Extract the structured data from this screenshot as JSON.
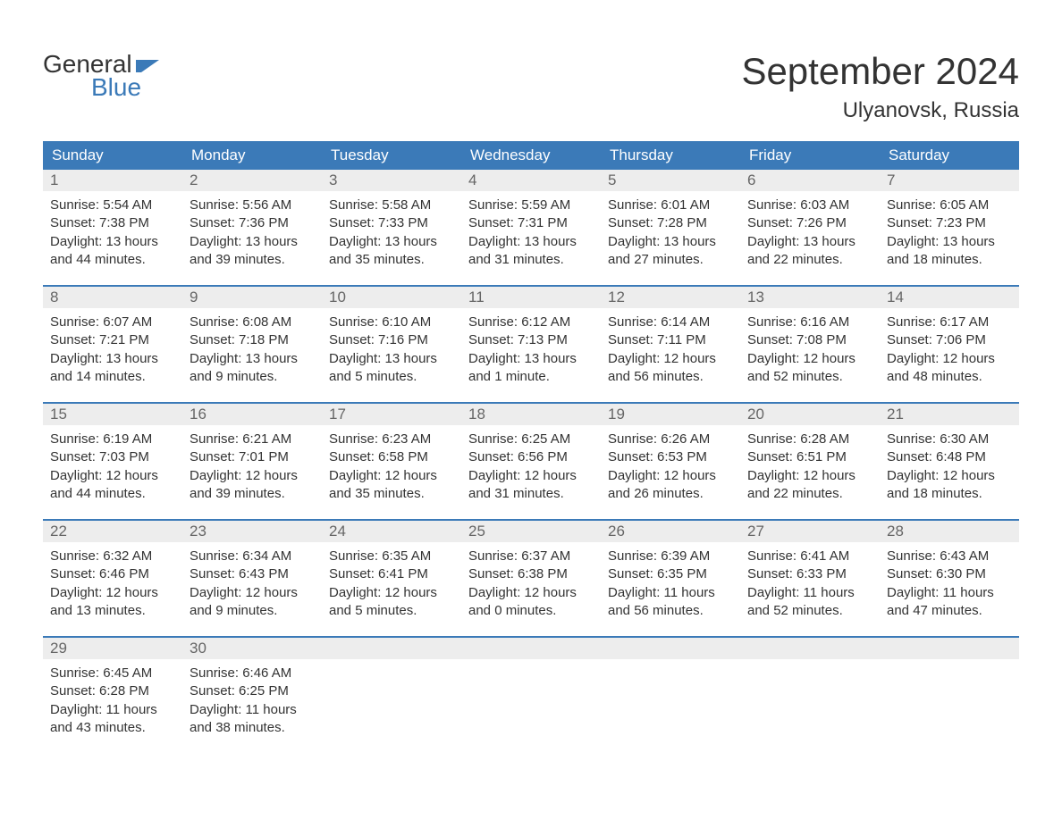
{
  "logo": {
    "text1": "General",
    "text2": "Blue"
  },
  "title": "September 2024",
  "location": "Ulyanovsk, Russia",
  "colors": {
    "header_bg": "#3b7ab8",
    "header_text": "#ffffff",
    "daynum_bg": "#ededed",
    "daynum_text": "#666666",
    "body_text": "#333333",
    "week_border": "#3b7ab8",
    "page_bg": "#ffffff",
    "logo_accent": "#3b7ab8"
  },
  "weekdays": [
    "Sunday",
    "Monday",
    "Tuesday",
    "Wednesday",
    "Thursday",
    "Friday",
    "Saturday"
  ],
  "weeks": [
    [
      {
        "n": "1",
        "sunrise": "Sunrise: 5:54 AM",
        "sunset": "Sunset: 7:38 PM",
        "d1": "Daylight: 13 hours",
        "d2": "and 44 minutes."
      },
      {
        "n": "2",
        "sunrise": "Sunrise: 5:56 AM",
        "sunset": "Sunset: 7:36 PM",
        "d1": "Daylight: 13 hours",
        "d2": "and 39 minutes."
      },
      {
        "n": "3",
        "sunrise": "Sunrise: 5:58 AM",
        "sunset": "Sunset: 7:33 PM",
        "d1": "Daylight: 13 hours",
        "d2": "and 35 minutes."
      },
      {
        "n": "4",
        "sunrise": "Sunrise: 5:59 AM",
        "sunset": "Sunset: 7:31 PM",
        "d1": "Daylight: 13 hours",
        "d2": "and 31 minutes."
      },
      {
        "n": "5",
        "sunrise": "Sunrise: 6:01 AM",
        "sunset": "Sunset: 7:28 PM",
        "d1": "Daylight: 13 hours",
        "d2": "and 27 minutes."
      },
      {
        "n": "6",
        "sunrise": "Sunrise: 6:03 AM",
        "sunset": "Sunset: 7:26 PM",
        "d1": "Daylight: 13 hours",
        "d2": "and 22 minutes."
      },
      {
        "n": "7",
        "sunrise": "Sunrise: 6:05 AM",
        "sunset": "Sunset: 7:23 PM",
        "d1": "Daylight: 13 hours",
        "d2": "and 18 minutes."
      }
    ],
    [
      {
        "n": "8",
        "sunrise": "Sunrise: 6:07 AM",
        "sunset": "Sunset: 7:21 PM",
        "d1": "Daylight: 13 hours",
        "d2": "and 14 minutes."
      },
      {
        "n": "9",
        "sunrise": "Sunrise: 6:08 AM",
        "sunset": "Sunset: 7:18 PM",
        "d1": "Daylight: 13 hours",
        "d2": "and 9 minutes."
      },
      {
        "n": "10",
        "sunrise": "Sunrise: 6:10 AM",
        "sunset": "Sunset: 7:16 PM",
        "d1": "Daylight: 13 hours",
        "d2": "and 5 minutes."
      },
      {
        "n": "11",
        "sunrise": "Sunrise: 6:12 AM",
        "sunset": "Sunset: 7:13 PM",
        "d1": "Daylight: 13 hours",
        "d2": "and 1 minute."
      },
      {
        "n": "12",
        "sunrise": "Sunrise: 6:14 AM",
        "sunset": "Sunset: 7:11 PM",
        "d1": "Daylight: 12 hours",
        "d2": "and 56 minutes."
      },
      {
        "n": "13",
        "sunrise": "Sunrise: 6:16 AM",
        "sunset": "Sunset: 7:08 PM",
        "d1": "Daylight: 12 hours",
        "d2": "and 52 minutes."
      },
      {
        "n": "14",
        "sunrise": "Sunrise: 6:17 AM",
        "sunset": "Sunset: 7:06 PM",
        "d1": "Daylight: 12 hours",
        "d2": "and 48 minutes."
      }
    ],
    [
      {
        "n": "15",
        "sunrise": "Sunrise: 6:19 AM",
        "sunset": "Sunset: 7:03 PM",
        "d1": "Daylight: 12 hours",
        "d2": "and 44 minutes."
      },
      {
        "n": "16",
        "sunrise": "Sunrise: 6:21 AM",
        "sunset": "Sunset: 7:01 PM",
        "d1": "Daylight: 12 hours",
        "d2": "and 39 minutes."
      },
      {
        "n": "17",
        "sunrise": "Sunrise: 6:23 AM",
        "sunset": "Sunset: 6:58 PM",
        "d1": "Daylight: 12 hours",
        "d2": "and 35 minutes."
      },
      {
        "n": "18",
        "sunrise": "Sunrise: 6:25 AM",
        "sunset": "Sunset: 6:56 PM",
        "d1": "Daylight: 12 hours",
        "d2": "and 31 minutes."
      },
      {
        "n": "19",
        "sunrise": "Sunrise: 6:26 AM",
        "sunset": "Sunset: 6:53 PM",
        "d1": "Daylight: 12 hours",
        "d2": "and 26 minutes."
      },
      {
        "n": "20",
        "sunrise": "Sunrise: 6:28 AM",
        "sunset": "Sunset: 6:51 PM",
        "d1": "Daylight: 12 hours",
        "d2": "and 22 minutes."
      },
      {
        "n": "21",
        "sunrise": "Sunrise: 6:30 AM",
        "sunset": "Sunset: 6:48 PM",
        "d1": "Daylight: 12 hours",
        "d2": "and 18 minutes."
      }
    ],
    [
      {
        "n": "22",
        "sunrise": "Sunrise: 6:32 AM",
        "sunset": "Sunset: 6:46 PM",
        "d1": "Daylight: 12 hours",
        "d2": "and 13 minutes."
      },
      {
        "n": "23",
        "sunrise": "Sunrise: 6:34 AM",
        "sunset": "Sunset: 6:43 PM",
        "d1": "Daylight: 12 hours",
        "d2": "and 9 minutes."
      },
      {
        "n": "24",
        "sunrise": "Sunrise: 6:35 AM",
        "sunset": "Sunset: 6:41 PM",
        "d1": "Daylight: 12 hours",
        "d2": "and 5 minutes."
      },
      {
        "n": "25",
        "sunrise": "Sunrise: 6:37 AM",
        "sunset": "Sunset: 6:38 PM",
        "d1": "Daylight: 12 hours",
        "d2": "and 0 minutes."
      },
      {
        "n": "26",
        "sunrise": "Sunrise: 6:39 AM",
        "sunset": "Sunset: 6:35 PM",
        "d1": "Daylight: 11 hours",
        "d2": "and 56 minutes."
      },
      {
        "n": "27",
        "sunrise": "Sunrise: 6:41 AM",
        "sunset": "Sunset: 6:33 PM",
        "d1": "Daylight: 11 hours",
        "d2": "and 52 minutes."
      },
      {
        "n": "28",
        "sunrise": "Sunrise: 6:43 AM",
        "sunset": "Sunset: 6:30 PM",
        "d1": "Daylight: 11 hours",
        "d2": "and 47 minutes."
      }
    ],
    [
      {
        "n": "29",
        "sunrise": "Sunrise: 6:45 AM",
        "sunset": "Sunset: 6:28 PM",
        "d1": "Daylight: 11 hours",
        "d2": "and 43 minutes."
      },
      {
        "n": "30",
        "sunrise": "Sunrise: 6:46 AM",
        "sunset": "Sunset: 6:25 PM",
        "d1": "Daylight: 11 hours",
        "d2": "and 38 minutes."
      },
      {
        "empty": true
      },
      {
        "empty": true
      },
      {
        "empty": true
      },
      {
        "empty": true
      },
      {
        "empty": true
      }
    ]
  ]
}
